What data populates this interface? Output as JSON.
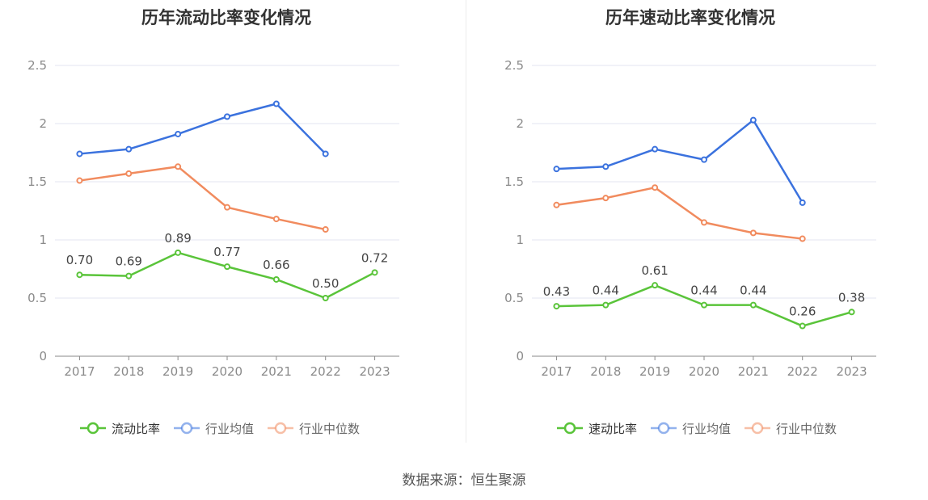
{
  "chart_data": [
    {
      "type": "line",
      "title": "历年流动比率变化情况",
      "categories": [
        "2017",
        "2018",
        "2019",
        "2020",
        "2021",
        "2022",
        "2023"
      ],
      "ylim": [
        0,
        2.5
      ],
      "yticks": [
        "0",
        "0.5",
        "1",
        "1.5",
        "2",
        "2.5"
      ],
      "grid": true,
      "legend_position": "bottom",
      "series": [
        {
          "name": "流动比率",
          "color": "#5ac43a",
          "values": [
            0.7,
            0.69,
            0.89,
            0.77,
            0.66,
            0.5,
            0.72
          ],
          "labels": [
            "0.70",
            "0.69",
            "0.89",
            "0.77",
            "0.66",
            "0.50",
            "0.72"
          ]
        },
        {
          "name": "行业均值",
          "color": "#3b72de",
          "values": [
            1.74,
            1.78,
            1.91,
            2.06,
            2.17,
            1.74,
            null
          ]
        },
        {
          "name": "行业中位数",
          "color": "#f18b5e",
          "values": [
            1.51,
            1.57,
            1.63,
            1.28,
            1.18,
            1.09,
            null
          ]
        }
      ]
    },
    {
      "type": "line",
      "title": "历年速动比率变化情况",
      "categories": [
        "2017",
        "2018",
        "2019",
        "2020",
        "2021",
        "2022",
        "2023"
      ],
      "ylim": [
        0,
        2.5
      ],
      "yticks": [
        "0",
        "0.5",
        "1",
        "1.5",
        "2",
        "2.5"
      ],
      "grid": true,
      "legend_position": "bottom",
      "series": [
        {
          "name": "速动比率",
          "color": "#5ac43a",
          "values": [
            0.43,
            0.44,
            0.61,
            0.44,
            0.44,
            0.26,
            0.38
          ],
          "labels": [
            "0.43",
            "0.44",
            "0.61",
            "0.44",
            "0.44",
            "0.26",
            "0.38"
          ]
        },
        {
          "name": "行业均值",
          "color": "#3b72de",
          "values": [
            1.61,
            1.63,
            1.78,
            1.69,
            2.03,
            1.32,
            null
          ]
        },
        {
          "name": "行业中位数",
          "color": "#f18b5e",
          "values": [
            1.3,
            1.36,
            1.45,
            1.15,
            1.06,
            1.01,
            null
          ]
        }
      ]
    }
  ],
  "footer": "数据来源：恒生聚源"
}
